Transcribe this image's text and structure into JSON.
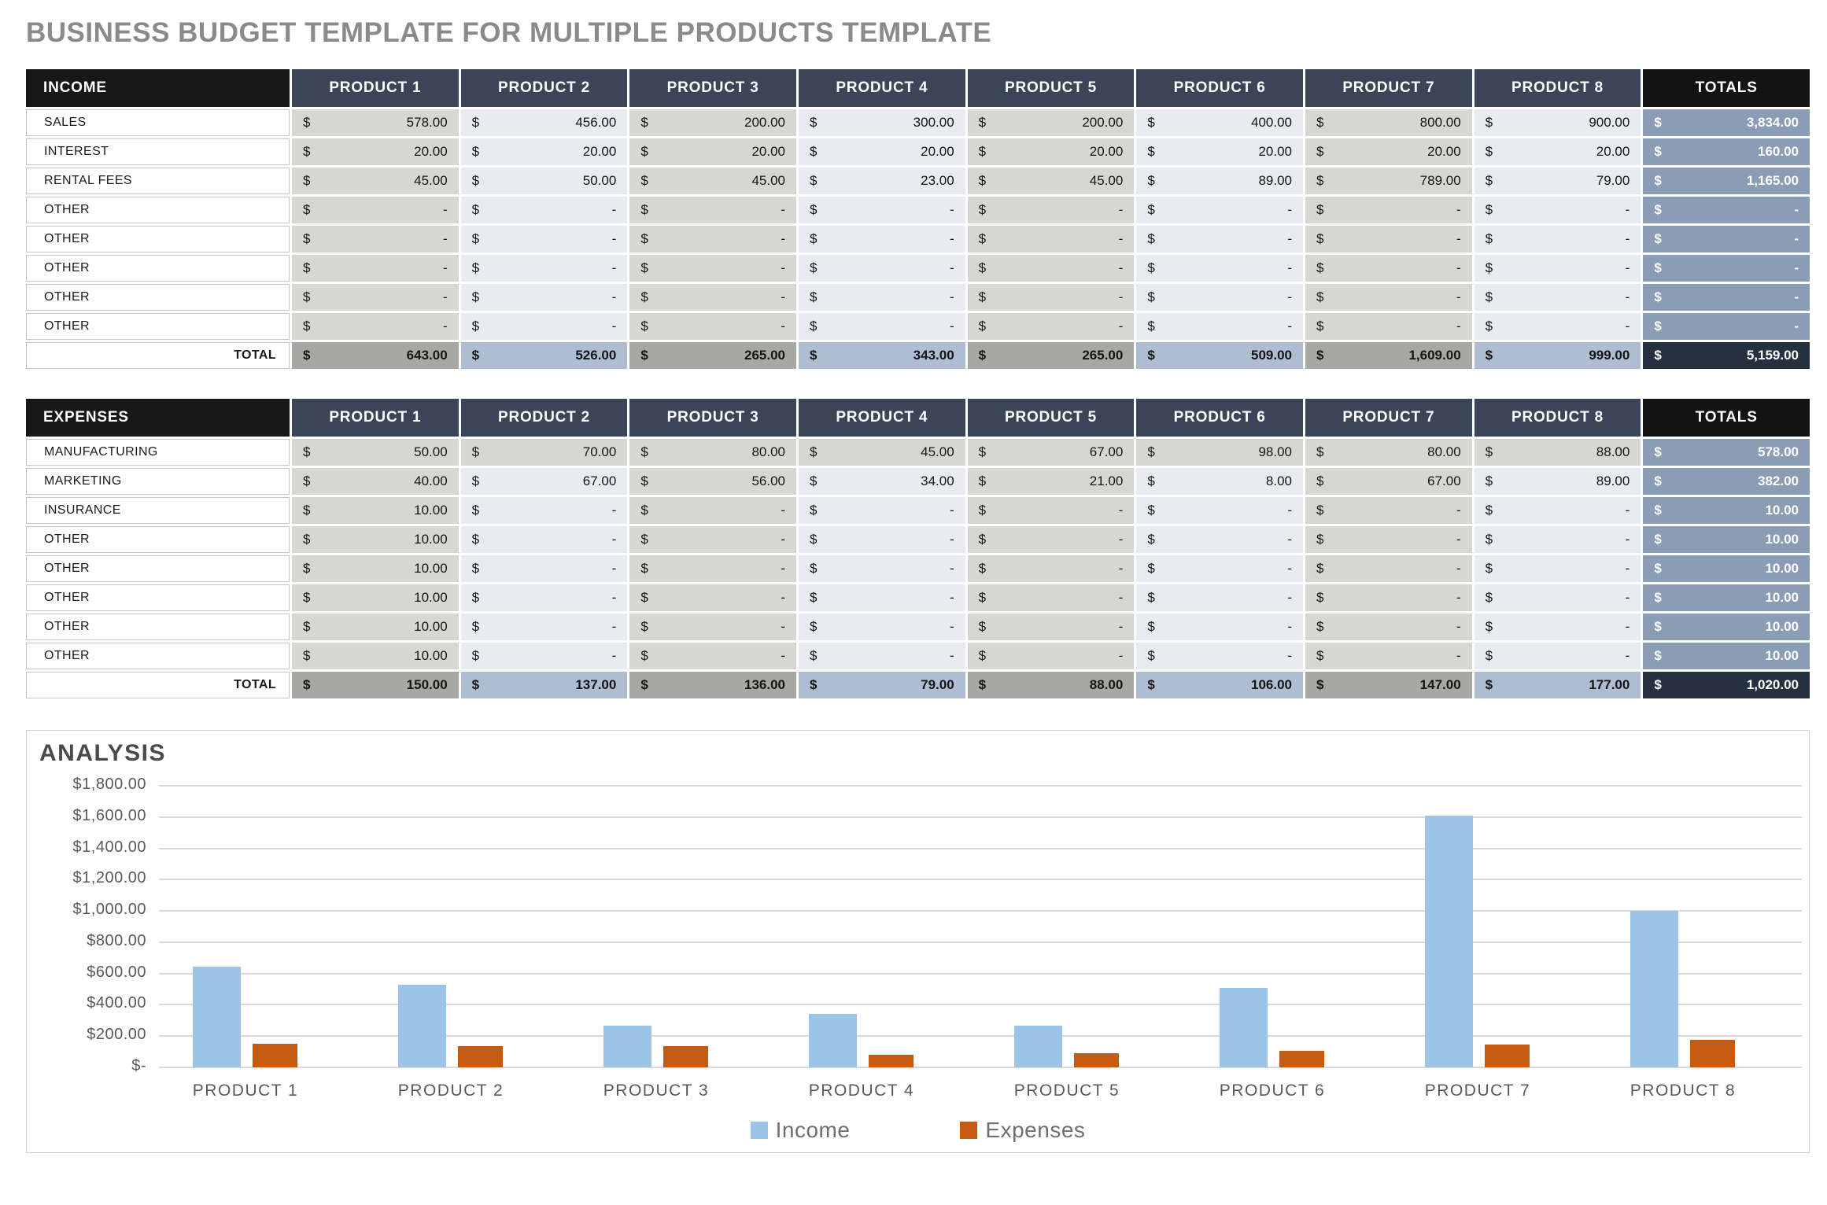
{
  "page_title": "BUSINESS BUDGET TEMPLATE FOR MULTIPLE PRODUCTS TEMPLATE",
  "currency": "$",
  "income": {
    "title": "INCOME",
    "columns": [
      "PRODUCT 1",
      "PRODUCT 2",
      "PRODUCT 3",
      "PRODUCT 4",
      "PRODUCT 5",
      "PRODUCT 6",
      "PRODUCT 7",
      "PRODUCT 8"
    ],
    "totals_label": "TOTALS",
    "rows": [
      {
        "label": "SALES",
        "values": [
          "578.00",
          "456.00",
          "200.00",
          "300.00",
          "200.00",
          "400.00",
          "800.00",
          "900.00"
        ],
        "total": "3,834.00"
      },
      {
        "label": "INTEREST",
        "values": [
          "20.00",
          "20.00",
          "20.00",
          "20.00",
          "20.00",
          "20.00",
          "20.00",
          "20.00"
        ],
        "total": "160.00"
      },
      {
        "label": "RENTAL FEES",
        "values": [
          "45.00",
          "50.00",
          "45.00",
          "23.00",
          "45.00",
          "89.00",
          "789.00",
          "79.00"
        ],
        "total": "1,165.00"
      },
      {
        "label": "OTHER",
        "values": [
          "-",
          "-",
          "-",
          "-",
          "-",
          "-",
          "-",
          "-"
        ],
        "total": "-"
      },
      {
        "label": "OTHER",
        "values": [
          "-",
          "-",
          "-",
          "-",
          "-",
          "-",
          "-",
          "-"
        ],
        "total": "-"
      },
      {
        "label": "OTHER",
        "values": [
          "-",
          "-",
          "-",
          "-",
          "-",
          "-",
          "-",
          "-"
        ],
        "total": "-"
      },
      {
        "label": "OTHER",
        "values": [
          "-",
          "-",
          "-",
          "-",
          "-",
          "-",
          "-",
          "-"
        ],
        "total": "-"
      },
      {
        "label": "OTHER",
        "values": [
          "-",
          "-",
          "-",
          "-",
          "-",
          "-",
          "-",
          "-"
        ],
        "total": "-"
      }
    ],
    "total_row": {
      "label": "TOTAL",
      "values": [
        "643.00",
        "526.00",
        "265.00",
        "343.00",
        "265.00",
        "509.00",
        "1,609.00",
        "999.00"
      ],
      "total": "5,159.00"
    }
  },
  "expenses": {
    "title": "EXPENSES",
    "columns": [
      "PRODUCT 1",
      "PRODUCT 2",
      "PRODUCT 3",
      "PRODUCT 4",
      "PRODUCT 5",
      "PRODUCT 6",
      "PRODUCT 7",
      "PRODUCT 8"
    ],
    "totals_label": "TOTALS",
    "rows": [
      {
        "label": "MANUFACTURING",
        "values": [
          "50.00",
          "70.00",
          "80.00",
          "45.00",
          "67.00",
          "98.00",
          "80.00",
          "88.00"
        ],
        "total": "578.00"
      },
      {
        "label": "MARKETING",
        "values": [
          "40.00",
          "67.00",
          "56.00",
          "34.00",
          "21.00",
          "8.00",
          "67.00",
          "89.00"
        ],
        "total": "382.00"
      },
      {
        "label": "INSURANCE",
        "values": [
          "10.00",
          "-",
          "-",
          "-",
          "-",
          "-",
          "-",
          "-"
        ],
        "total": "10.00"
      },
      {
        "label": "OTHER",
        "values": [
          "10.00",
          "-",
          "-",
          "-",
          "-",
          "-",
          "-",
          "-"
        ],
        "total": "10.00"
      },
      {
        "label": "OTHER",
        "values": [
          "10.00",
          "-",
          "-",
          "-",
          "-",
          "-",
          "-",
          "-"
        ],
        "total": "10.00"
      },
      {
        "label": "OTHER",
        "values": [
          "10.00",
          "-",
          "-",
          "-",
          "-",
          "-",
          "-",
          "-"
        ],
        "total": "10.00"
      },
      {
        "label": "OTHER",
        "values": [
          "10.00",
          "-",
          "-",
          "-",
          "-",
          "-",
          "-",
          "-"
        ],
        "total": "10.00"
      },
      {
        "label": "OTHER",
        "values": [
          "10.00",
          "-",
          "-",
          "-",
          "-",
          "-",
          "-",
          "-"
        ],
        "total": "10.00"
      }
    ],
    "total_row": {
      "label": "TOTAL",
      "values": [
        "150.00",
        "137.00",
        "136.00",
        "79.00",
        "88.00",
        "106.00",
        "147.00",
        "177.00"
      ],
      "total": "1,020.00"
    }
  },
  "analysis": {
    "title": "ANALYSIS"
  },
  "chart_data": {
    "type": "bar",
    "title": "ANALYSIS",
    "categories": [
      "PRODUCT 1",
      "PRODUCT 2",
      "PRODUCT 3",
      "PRODUCT 4",
      "PRODUCT 5",
      "PRODUCT 6",
      "PRODUCT 7",
      "PRODUCT 8"
    ],
    "series": [
      {
        "name": "Income",
        "color": "#9DC3E6",
        "values": [
          643,
          526,
          265,
          343,
          265,
          509,
          1609,
          999
        ]
      },
      {
        "name": "Expenses",
        "color": "#C55A11",
        "values": [
          150,
          137,
          136,
          79,
          88,
          106,
          147,
          177
        ]
      }
    ],
    "xlabel": "",
    "ylabel": "",
    "ylim": [
      0,
      1800
    ],
    "ytick_step": 200,
    "y_tick_labels": [
      "$-",
      "$200.00",
      "$400.00",
      "$600.00",
      "$800.00",
      "$1,000.00",
      "$1,200.00",
      "$1,400.00",
      "$1,600.00",
      "$1,800.00"
    ],
    "grid": true,
    "legend_position": "bottom"
  }
}
